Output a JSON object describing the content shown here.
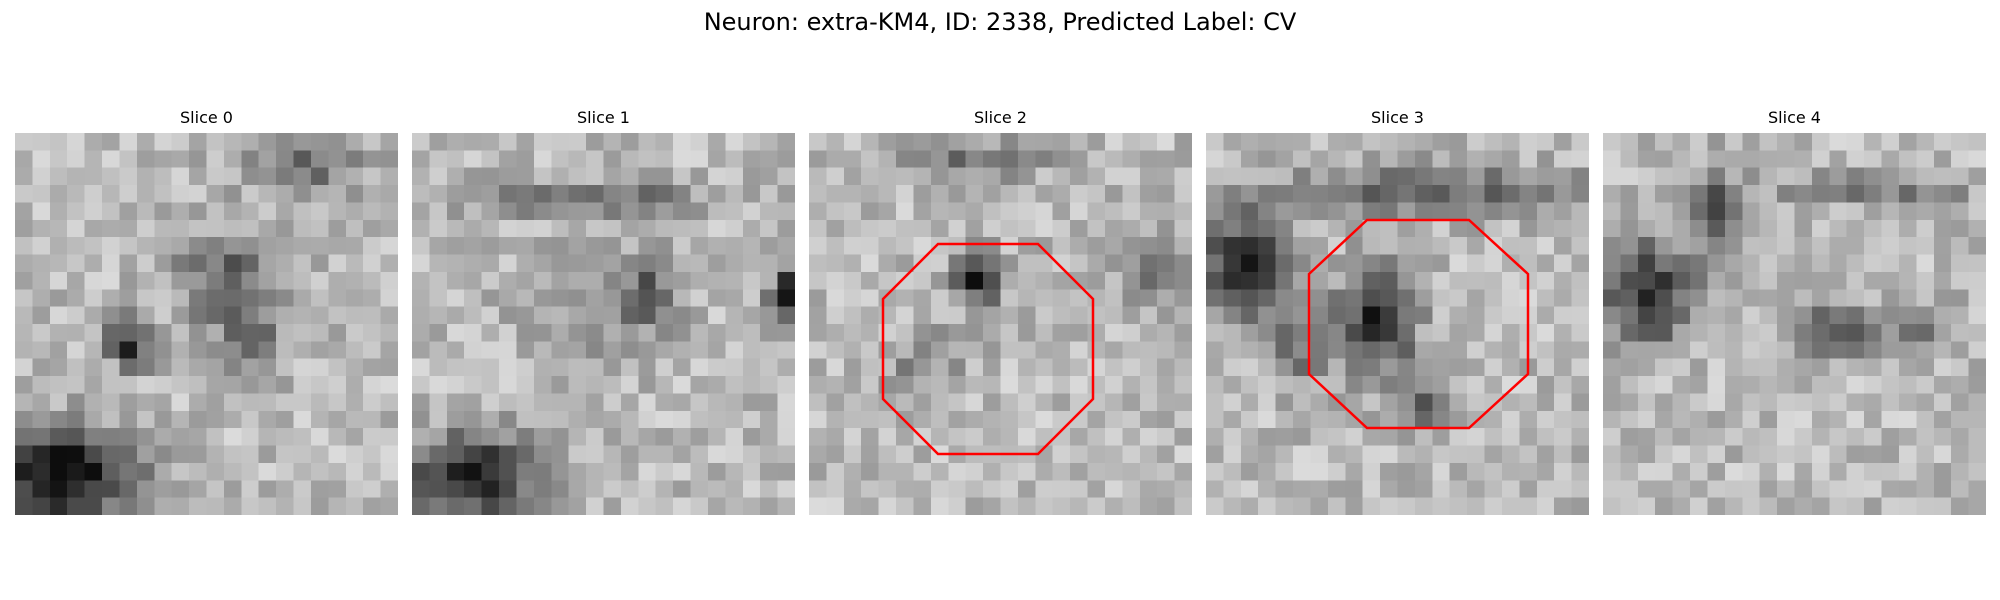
{
  "figure": {
    "suptitle": "Neuron: extra-KM4, ID: 2338, Predicted Label: CV",
    "grid_size": 22,
    "outline_color": "#ff0000"
  },
  "slices": [
    {
      "title": "Slice 0",
      "seed": 11,
      "has_outline": false
    },
    {
      "title": "Slice 1",
      "seed": 29,
      "has_outline": false
    },
    {
      "title": "Slice 2",
      "seed": 47,
      "has_outline": true
    },
    {
      "title": "Slice 3",
      "seed": 83,
      "has_outline": true
    },
    {
      "title": "Slice 4",
      "seed": 101,
      "has_outline": false
    }
  ]
}
